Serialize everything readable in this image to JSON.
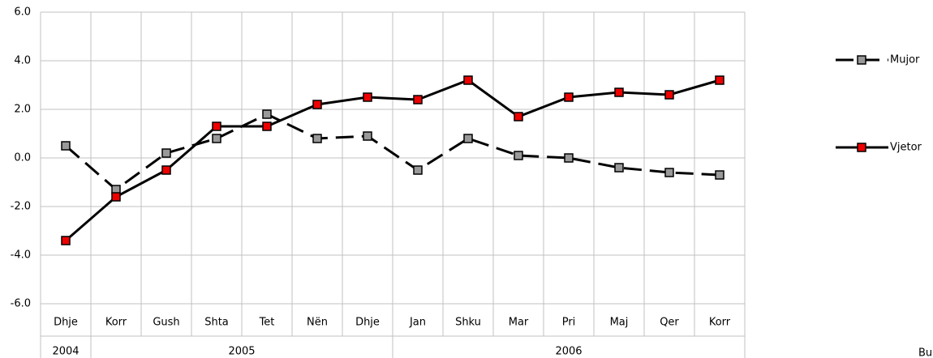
{
  "chart_data": {
    "type": "line",
    "categories": [
      "Dhje",
      "Korr",
      "Gush",
      "Shta",
      "Tet",
      "Nën",
      "Dhje",
      "Jan",
      "Shku",
      "Mar",
      "Pri",
      "Maj",
      "Qer",
      "Korr"
    ],
    "year_groups": [
      {
        "label": "2004",
        "count": 1
      },
      {
        "label": "2005",
        "count": 6
      },
      {
        "label": "2006",
        "count": 7
      }
    ],
    "series": [
      {
        "name": "Mujor",
        "color": "#999999",
        "dashed": true,
        "values": [
          0.5,
          -1.3,
          0.2,
          0.8,
          1.8,
          0.8,
          0.9,
          -0.5,
          0.8,
          0.1,
          0.0,
          -0.4,
          -0.6,
          -0.7
        ]
      },
      {
        "name": "Vjetor",
        "color": "#ee0000",
        "dashed": false,
        "values": [
          -3.4,
          -1.6,
          -0.5,
          1.3,
          1.3,
          2.2,
          2.5,
          2.4,
          3.2,
          1.7,
          2.5,
          2.7,
          2.6,
          3.2
        ]
      }
    ],
    "ylim": [
      -6,
      6
    ],
    "yticks": [
      {
        "value": -6,
        "label": "-6.0"
      },
      {
        "value": -4,
        "label": "-4.0"
      },
      {
        "value": -2,
        "label": "-2.0"
      },
      {
        "value": 0,
        "label": "0.0"
      },
      {
        "value": 2,
        "label": "2.0"
      },
      {
        "value": 4,
        "label": "4.0"
      },
      {
        "value": 6,
        "label": "6.0"
      }
    ],
    "grid": true,
    "footer_text": "Bu"
  }
}
